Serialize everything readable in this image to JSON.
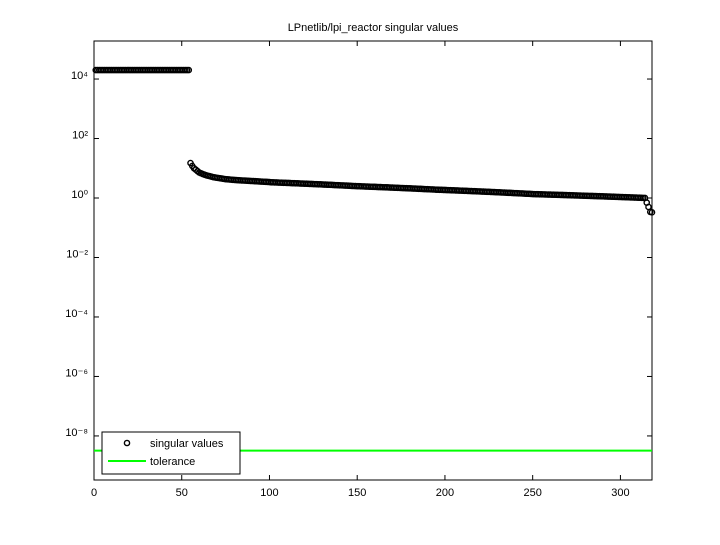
{
  "chart_data": {
    "type": "scatter",
    "title": "LPnetlib/lpi_reactor singular values",
    "log_y": true,
    "legend": "lower left",
    "xlim": [
      0,
      318
    ],
    "xticks": [
      0,
      50,
      100,
      150,
      200,
      250,
      300
    ],
    "ylim": [
      3.3e-10,
      190000
    ],
    "yticks": [
      {
        "value": 1e-08,
        "label": "10⁻⁸"
      },
      {
        "value": 1e-06,
        "label": "10⁻⁶"
      },
      {
        "value": 0.0001,
        "label": "10⁻⁴"
      },
      {
        "value": 0.01,
        "label": "10⁻²"
      },
      {
        "value": 1,
        "label": "10⁰"
      },
      {
        "value": 100,
        "label": "10²"
      },
      {
        "value": 10000,
        "label": "10⁴"
      }
    ],
    "series": [
      {
        "name": "singular values",
        "color": "#000000",
        "x": [
          1,
          2,
          3,
          4,
          5,
          6,
          7,
          8,
          9,
          10,
          11,
          12,
          13,
          14,
          15,
          16,
          17,
          18,
          19,
          20,
          21,
          22,
          23,
          24,
          25,
          26,
          27,
          28,
          29,
          30,
          31,
          32,
          33,
          34,
          35,
          36,
          37,
          38,
          39,
          40,
          41,
          42,
          43,
          44,
          45,
          46,
          47,
          48,
          49,
          50,
          51,
          52,
          53,
          54,
          55,
          56,
          57,
          58,
          59,
          60,
          61,
          62,
          63,
          64,
          65,
          66,
          67,
          68,
          69,
          70,
          71,
          72,
          73,
          74,
          75,
          76,
          77,
          78,
          79,
          80,
          81,
          82,
          83,
          84,
          85,
          86,
          87,
          88,
          89,
          90,
          91,
          92,
          93,
          94,
          95,
          96,
          97,
          98,
          99,
          100,
          101,
          102,
          103,
          104,
          105,
          106,
          107,
          108,
          109,
          110,
          111,
          112,
          113,
          114,
          115,
          116,
          117,
          118,
          119,
          120,
          121,
          122,
          123,
          124,
          125,
          126,
          127,
          128,
          129,
          130,
          131,
          132,
          133,
          134,
          135,
          136,
          137,
          138,
          139,
          140,
          141,
          142,
          143,
          144,
          145,
          146,
          147,
          148,
          149,
          150,
          151,
          152,
          153,
          154,
          155,
          156,
          157,
          158,
          159,
          160,
          161,
          162,
          163,
          164,
          165,
          166,
          167,
          168,
          169,
          170,
          171,
          172,
          173,
          174,
          175,
          176,
          177,
          178,
          179,
          180,
          181,
          182,
          183,
          184,
          185,
          186,
          187,
          188,
          189,
          190,
          191,
          192,
          193,
          194,
          195,
          196,
          197,
          198,
          199,
          200,
          201,
          202,
          203,
          204,
          205,
          206,
          207,
          208,
          209,
          210,
          211,
          212,
          213,
          214,
          215,
          216,
          217,
          218,
          219,
          220,
          221,
          222,
          223,
          224,
          225,
          226,
          227,
          228,
          229,
          230,
          231,
          232,
          233,
          234,
          235,
          236,
          237,
          238,
          239,
          240,
          241,
          242,
          243,
          244,
          245,
          246,
          247,
          248,
          249,
          250,
          251,
          252,
          253,
          254,
          255,
          256,
          257,
          258,
          259,
          260,
          261,
          262,
          263,
          264,
          265,
          266,
          267,
          268,
          269,
          270,
          271,
          272,
          273,
          274,
          275,
          276,
          277,
          278,
          279,
          280,
          281,
          282,
          283,
          284,
          285,
          286,
          287,
          288,
          289,
          290,
          291,
          292,
          293,
          294,
          295,
          296,
          297,
          298,
          299,
          300,
          301,
          302,
          303,
          304,
          305,
          306,
          307,
          308,
          309,
          310,
          311,
          312,
          313,
          314,
          315,
          316,
          317,
          318
        ],
        "values": [
          20000,
          20000,
          20000,
          20000,
          20000,
          20000,
          20000,
          20000,
          20000,
          20000,
          20000,
          20000,
          20000,
          20000,
          20000,
          20000,
          20000,
          20000,
          20000,
          20000,
          20000,
          20000,
          20000,
          20000,
          20000,
          20000,
          20000,
          20000,
          20000,
          20000,
          20000,
          20000,
          20000,
          20000,
          20000,
          20000,
          20000,
          20000,
          20000,
          20000,
          20000,
          20000,
          20000,
          20000,
          20000,
          20000,
          20000,
          20000,
          20000,
          20000,
          20000,
          20000,
          20000,
          20000,
          15,
          12,
          10,
          9,
          8,
          7.2,
          6.8,
          6.4,
          6.1,
          5.8,
          5.6,
          5.4,
          5.2,
          5.0,
          4.9,
          4.8,
          4.7,
          4.6,
          4.5,
          4.4,
          4.3,
          4.25,
          4.2,
          4.15,
          4.1,
          4.05,
          4.0,
          3.97,
          3.94,
          3.91,
          3.88,
          3.85,
          3.82,
          3.79,
          3.76,
          3.73,
          3.7,
          3.67,
          3.64,
          3.61,
          3.58,
          3.55,
          3.52,
          3.49,
          3.46,
          3.43,
          3.38,
          3.36,
          3.34,
          3.33,
          3.31,
          3.29,
          3.27,
          3.25,
          3.24,
          3.22,
          3.2,
          3.18,
          3.16,
          3.15,
          3.13,
          3.11,
          3.09,
          3.07,
          3.06,
          3.04,
          3.02,
          3.0,
          2.98,
          2.97,
          2.95,
          2.93,
          2.91,
          2.89,
          2.88,
          2.86,
          2.84,
          2.82,
          2.8,
          2.79,
          2.77,
          2.75,
          2.73,
          2.71,
          2.7,
          2.68,
          2.66,
          2.64,
          2.62,
          2.61,
          2.59,
          2.57,
          2.55,
          2.53,
          2.52,
          2.5,
          2.49,
          2.47,
          2.46,
          2.45,
          2.43,
          2.42,
          2.41,
          2.39,
          2.38,
          2.37,
          2.36,
          2.34,
          2.33,
          2.32,
          2.3,
          2.29,
          2.28,
          2.26,
          2.25,
          2.24,
          2.23,
          2.21,
          2.2,
          2.19,
          2.17,
          2.16,
          2.15,
          2.13,
          2.12,
          2.11,
          2.1,
          2.08,
          2.07,
          2.06,
          2.04,
          2.03,
          2.02,
          2.0,
          1.99,
          1.98,
          1.97,
          1.95,
          1.94,
          1.93,
          1.91,
          1.9,
          1.89,
          1.88,
          1.87,
          1.86,
          1.85,
          1.84,
          1.83,
          1.82,
          1.81,
          1.8,
          1.79,
          1.78,
          1.77,
          1.76,
          1.75,
          1.74,
          1.73,
          1.72,
          1.71,
          1.7,
          1.69,
          1.68,
          1.67,
          1.66,
          1.65,
          1.64,
          1.63,
          1.62,
          1.61,
          1.6,
          1.59,
          1.58,
          1.57,
          1.56,
          1.55,
          1.54,
          1.53,
          1.52,
          1.51,
          1.5,
          1.49,
          1.48,
          1.47,
          1.46,
          1.45,
          1.44,
          1.43,
          1.42,
          1.41,
          1.4,
          1.39,
          1.38,
          1.37,
          1.36,
          1.35,
          1.345,
          1.34,
          1.334,
          1.329,
          1.323,
          1.318,
          1.312,
          1.307,
          1.301,
          1.296,
          1.29,
          1.285,
          1.279,
          1.274,
          1.268,
          1.263,
          1.257,
          1.252,
          1.246,
          1.241,
          1.235,
          1.23,
          1.224,
          1.219,
          1.213,
          1.208,
          1.202,
          1.197,
          1.191,
          1.186,
          1.18,
          1.175,
          1.169,
          1.164,
          1.158,
          1.153,
          1.147,
          1.142,
          1.136,
          1.131,
          1.125,
          1.12,
          1.114,
          1.109,
          1.103,
          1.098,
          1.092,
          1.087,
          1.081,
          1.076,
          1.07,
          1.065,
          1.059,
          1.054,
          1.048,
          1.043,
          1.037,
          1.032,
          1.026,
          1.021,
          1.015,
          1.01,
          1.004,
          0.7,
          0.5,
          0.34,
          0.33
        ]
      },
      {
        "name": "tolerance",
        "color": "#00ff00",
        "type": "hline",
        "values": [
          3.2e-09
        ]
      }
    ]
  }
}
